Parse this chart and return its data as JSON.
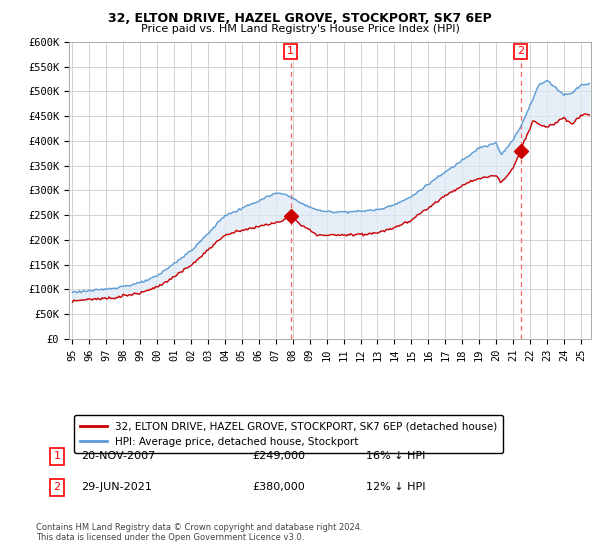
{
  "title": "32, ELTON DRIVE, HAZEL GROVE, STOCKPORT, SK7 6EP",
  "subtitle": "Price paid vs. HM Land Registry's House Price Index (HPI)",
  "legend_line1": "32, ELTON DRIVE, HAZEL GROVE, STOCKPORT, SK7 6EP (detached house)",
  "legend_line2": "HPI: Average price, detached house, Stockport",
  "annotation1_label": "1",
  "annotation1_date": "20-NOV-2007",
  "annotation1_price": "£249,000",
  "annotation1_hpi": "16% ↓ HPI",
  "annotation2_label": "2",
  "annotation2_date": "29-JUN-2021",
  "annotation2_price": "£380,000",
  "annotation2_hpi": "12% ↓ HPI",
  "footnote": "Contains HM Land Registry data © Crown copyright and database right 2024.\nThis data is licensed under the Open Government Licence v3.0.",
  "ylim": [
    0,
    600000
  ],
  "yticks": [
    0,
    50000,
    100000,
    150000,
    200000,
    250000,
    300000,
    350000,
    400000,
    450000,
    500000,
    550000,
    600000
  ],
  "hpi_color": "#5B9BD5",
  "hpi_fill_color": "#DCE9F5",
  "price_color": "#CC0000",
  "vline_color": "#FF6666",
  "marker_color": "#CC0000",
  "background_color": "#FFFFFF",
  "grid_color": "#CCCCCC",
  "sale1_x": 2007.875,
  "sale1_y": 249000,
  "sale2_x": 2021.458,
  "sale2_y": 380000,
  "xmin": 1995.0,
  "xmax": 2025.5
}
